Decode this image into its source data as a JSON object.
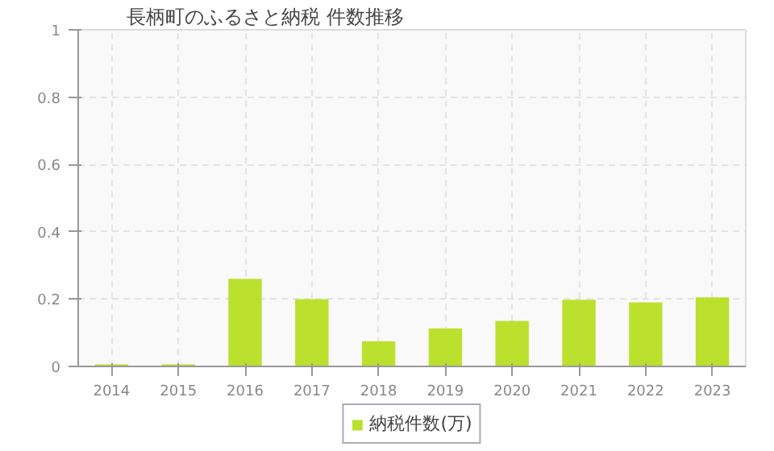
{
  "chart_data": {
    "type": "bar",
    "title": "長柄町のふるさと納税  件数推移",
    "categories": [
      "2014",
      "2015",
      "2016",
      "2017",
      "2018",
      "2019",
      "2020",
      "2021",
      "2022",
      "2023"
    ],
    "series": [
      {
        "name": "納税件数(万)",
        "color": "#bbe02e",
        "values": [
          0.006,
          0.006,
          0.26,
          0.2,
          0.075,
          0.113,
          0.135,
          0.198,
          0.19,
          0.205
        ]
      }
    ],
    "ylim": [
      0,
      1
    ],
    "yticks": [
      0,
      {
        "value": 0.2,
        "label": "0.2"
      },
      {
        "value": 0.4,
        "label": "0.4"
      },
      {
        "value": 0.6,
        "label": "0.6"
      },
      {
        "value": 0.8,
        "label": "0.8"
      },
      1
    ],
    "grid": true,
    "legend": "bottom"
  }
}
